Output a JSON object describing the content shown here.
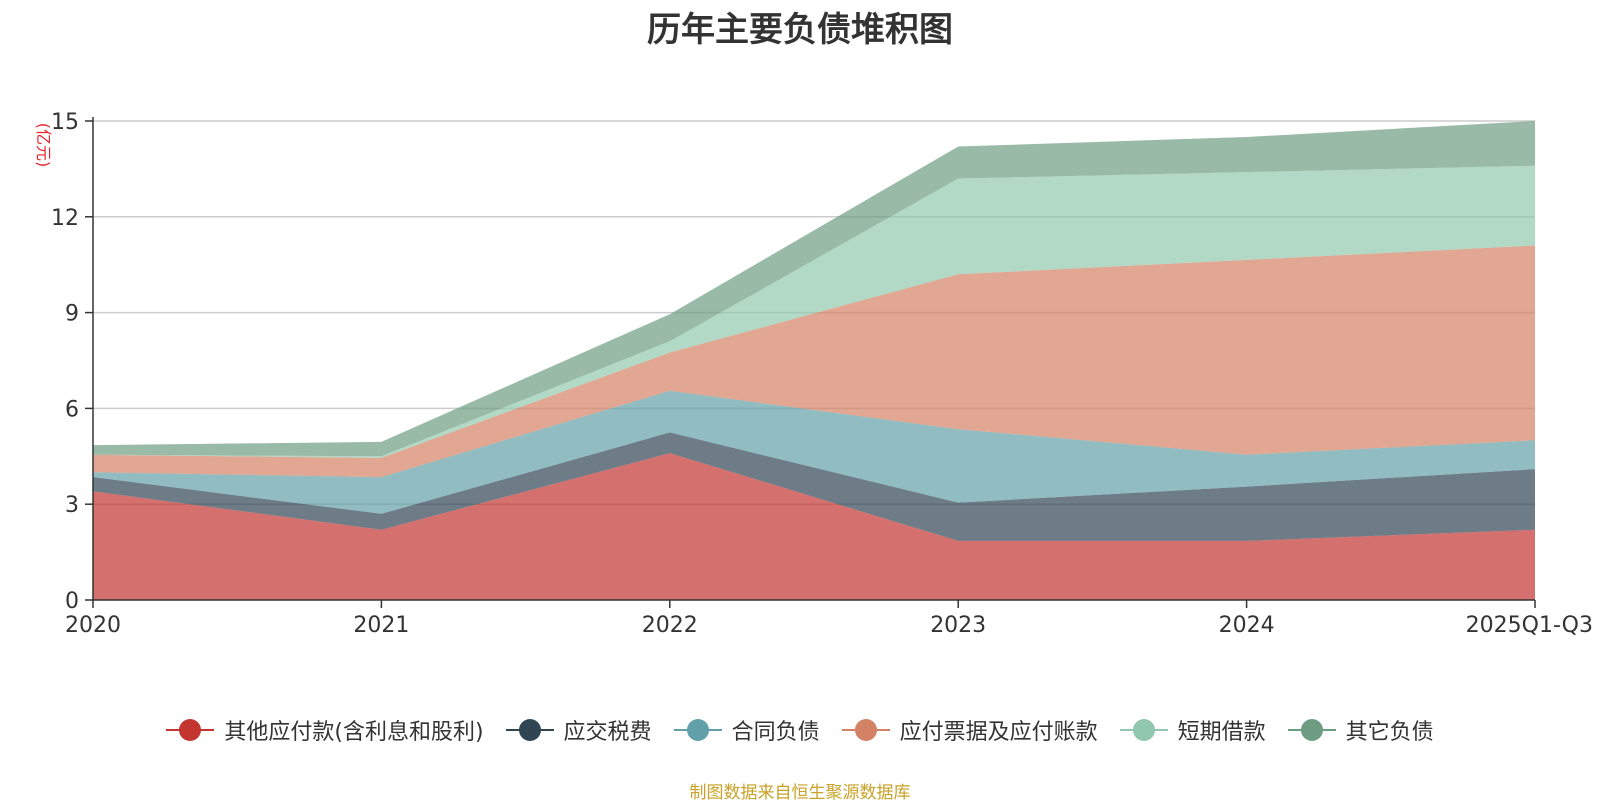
{
  "chart_data": {
    "type": "area",
    "stacked": true,
    "title": "历年主要负债堆积图",
    "unit_label": "(亿元)",
    "categories": [
      "2020",
      "2021",
      "2022",
      "2023",
      "2024",
      "2025Q1-Q3"
    ],
    "ylim": [
      0,
      15
    ],
    "yticks": [
      0,
      3,
      6,
      9,
      12,
      15
    ],
    "grid": true,
    "legend_position": "bottom",
    "series": [
      {
        "name": "其他应付款(含利息和股利)",
        "color": "#c23531",
        "values": [
          3.4,
          2.2,
          4.6,
          1.85,
          1.85,
          2.2
        ]
      },
      {
        "name": "应交税费",
        "color": "#2f4554",
        "values": [
          0.45,
          0.5,
          0.65,
          1.2,
          1.7,
          1.9
        ]
      },
      {
        "name": "合同负债",
        "color": "#61a0a8",
        "values": [
          0.15,
          1.15,
          1.3,
          2.3,
          1.0,
          0.9
        ]
      },
      {
        "name": "应付票据及应付账款",
        "color": "#d48265",
        "values": [
          0.55,
          0.6,
          1.2,
          4.85,
          6.1,
          6.1
        ]
      },
      {
        "name": "短期借款",
        "color": "#91c7ae",
        "values": [
          0.0,
          0.05,
          0.35,
          3.0,
          2.75,
          2.5
        ]
      },
      {
        "name": "其它负债",
        "color": "#6e9c82",
        "values": [
          0.3,
          0.45,
          0.85,
          1.0,
          1.1,
          1.4
        ]
      }
    ]
  },
  "footer": {
    "source": "制图数据来自恒生聚源数据库"
  }
}
